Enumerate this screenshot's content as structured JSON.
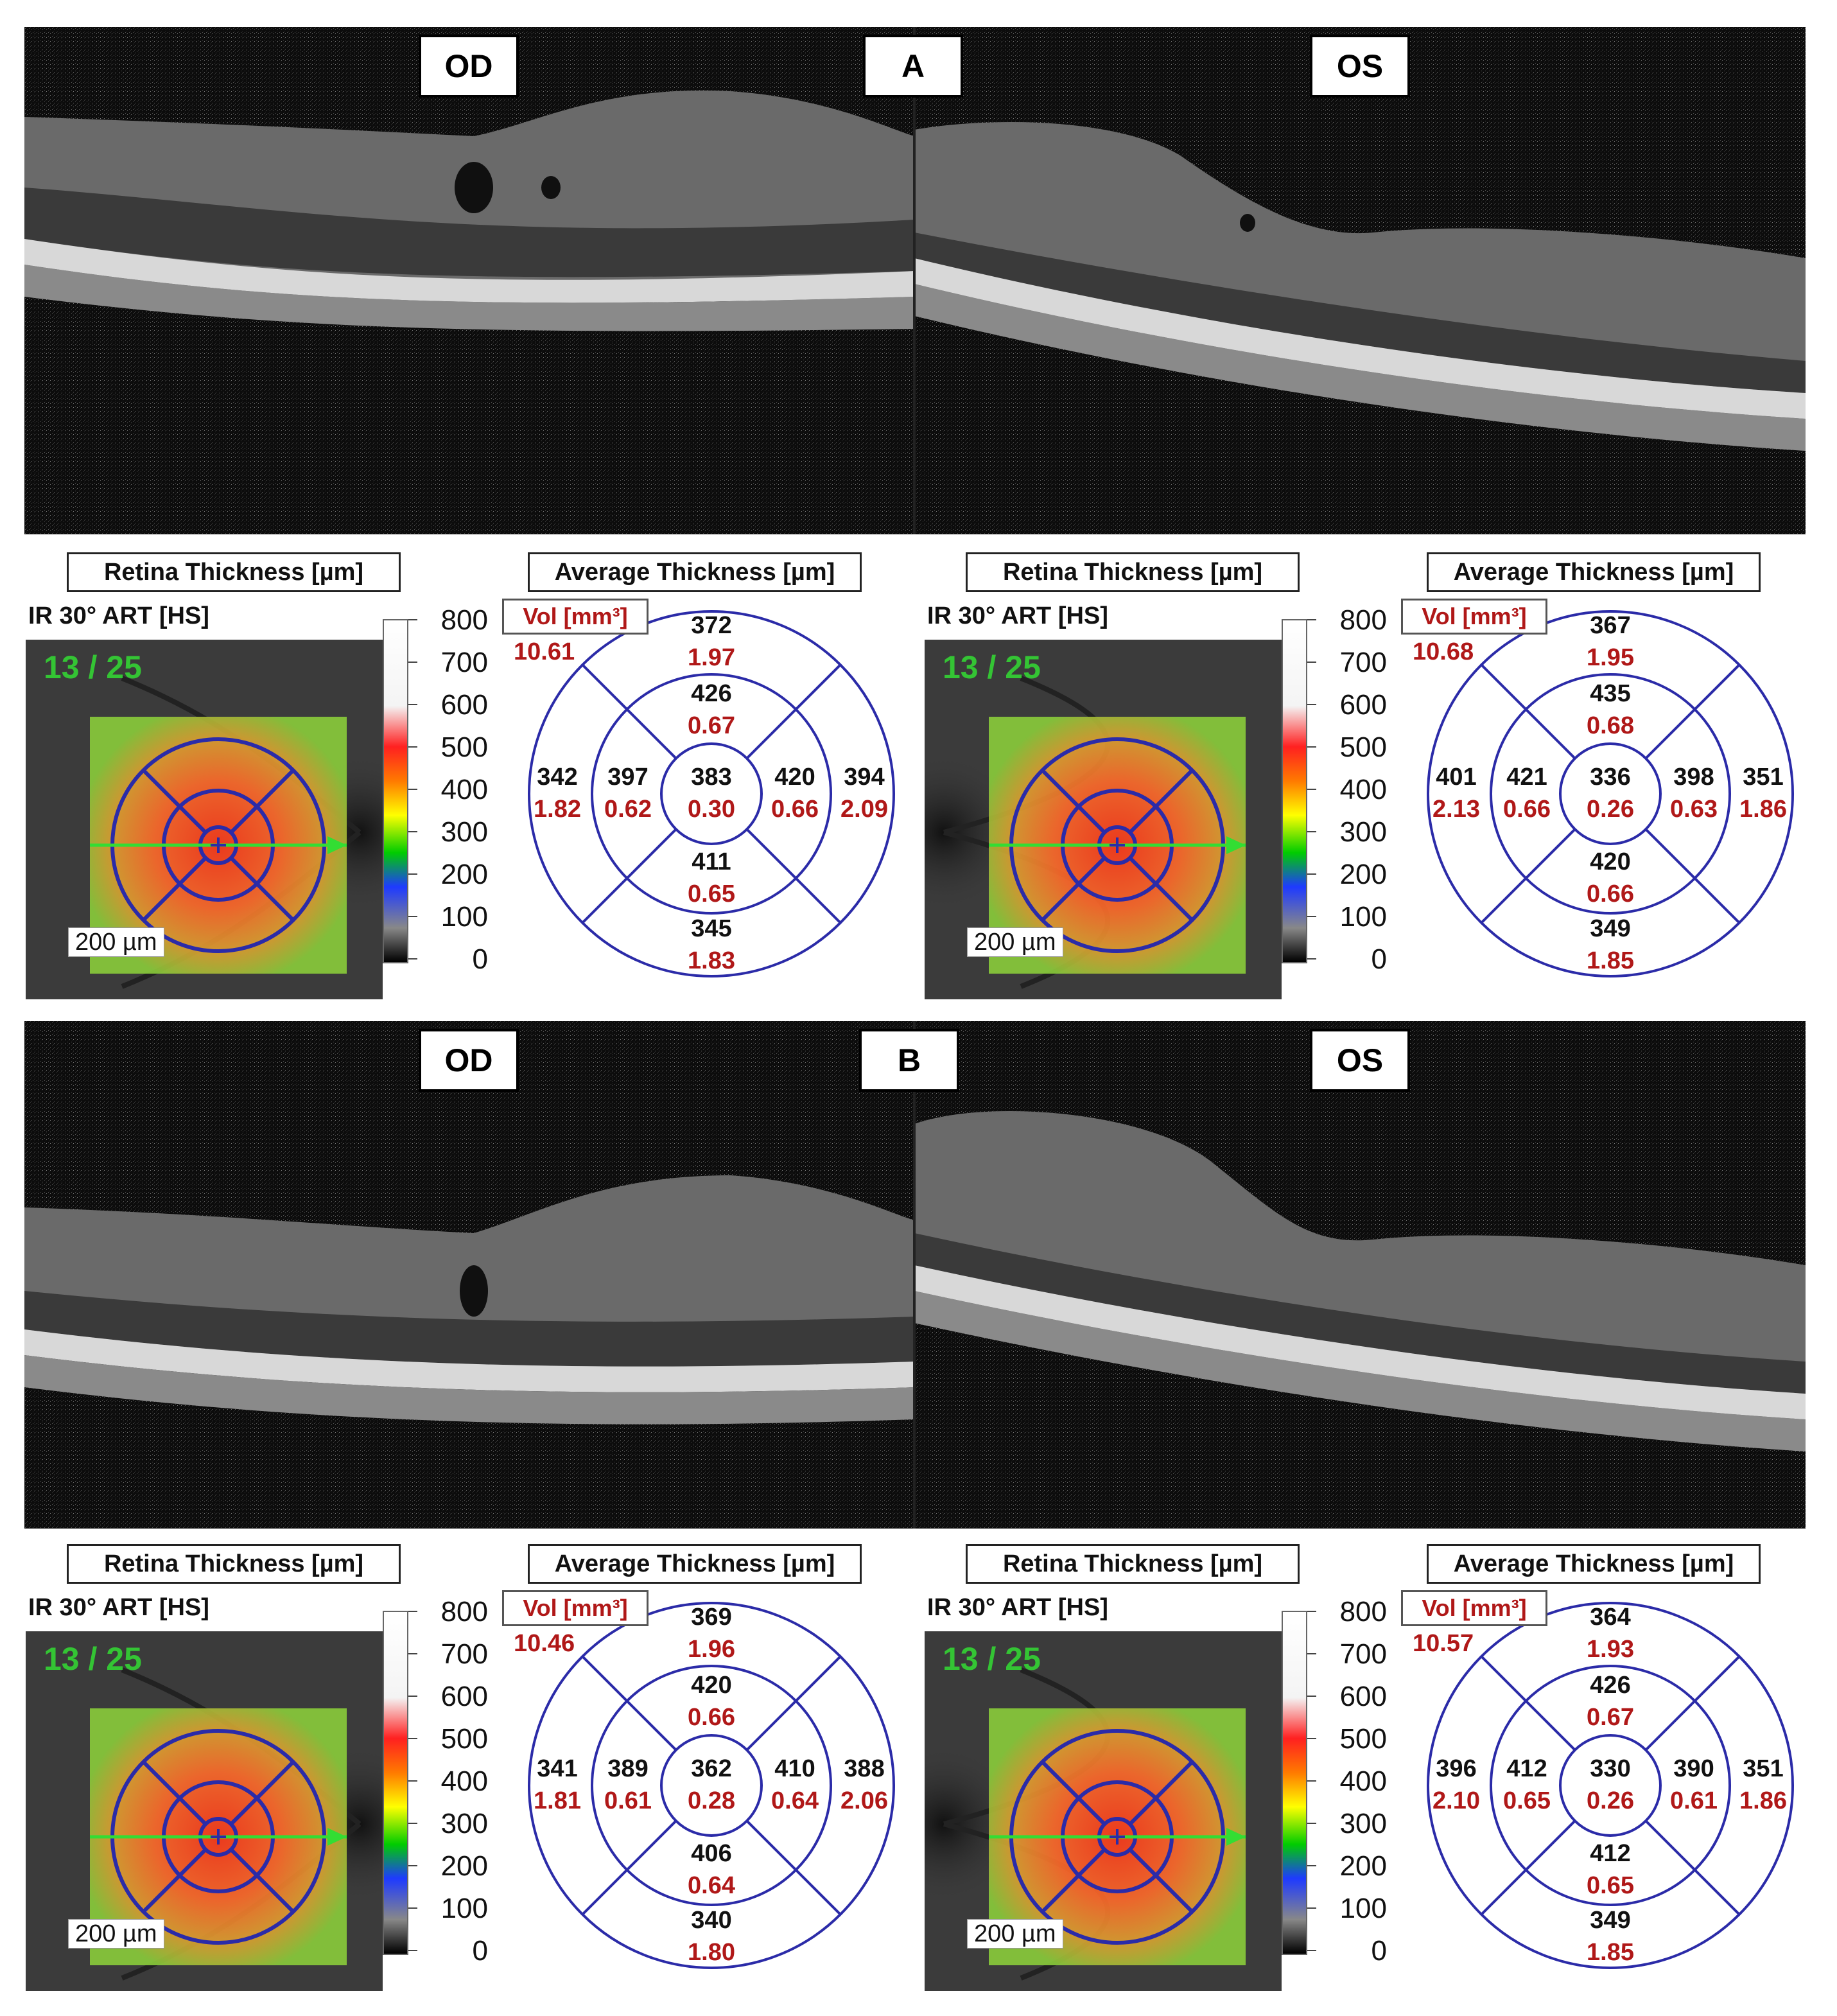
{
  "panels": [
    {
      "letter": "A",
      "eyes": [
        {
          "eye_label": "OD",
          "retina_header": "Retina Thickness [µm]",
          "avg_header": "Average Thickness [µm]",
          "ir_label": "IR 30° ART [HS]",
          "counter": "13 / 25",
          "scale_bar": "200 µm",
          "vol_label": "Vol [mm³]",
          "vol_total": "10.61",
          "ticks": [
            "800",
            "700",
            "600",
            "500",
            "400",
            "300",
            "200",
            "100",
            "0"
          ],
          "values": {
            "top_outer": "372",
            "top_outer_vol": "1.97",
            "top_inner": "426",
            "top_inner_vol": "0.67",
            "center": "383",
            "center_vol": "0.30",
            "left_outer": "342",
            "left_outer_vol": "1.82",
            "left_inner": "397",
            "left_inner_vol": "0.62",
            "right_inner": "420",
            "right_inner_vol": "0.66",
            "right_outer": "394",
            "right_outer_vol": "2.09",
            "bottom_inner": "411",
            "bottom_inner_vol": "0.65",
            "bottom_outer": "345",
            "bottom_outer_vol": "1.83"
          }
        },
        {
          "eye_label": "OS",
          "retina_header": "Retina Thickness [µm]",
          "avg_header": "Average Thickness [µm]",
          "ir_label": "IR 30° ART [HS]",
          "counter": "13 / 25",
          "scale_bar": "200 µm",
          "vol_label": "Vol [mm³]",
          "vol_total": "10.68",
          "ticks": [
            "800",
            "700",
            "600",
            "500",
            "400",
            "300",
            "200",
            "100",
            "0"
          ],
          "values": {
            "top_outer": "367",
            "top_outer_vol": "1.95",
            "top_inner": "435",
            "top_inner_vol": "0.68",
            "center": "336",
            "center_vol": "0.26",
            "left_outer": "401",
            "left_outer_vol": "2.13",
            "left_inner": "421",
            "left_inner_vol": "0.66",
            "right_inner": "398",
            "right_inner_vol": "0.63",
            "right_outer": "351",
            "right_outer_vol": "1.86",
            "bottom_inner": "420",
            "bottom_inner_vol": "0.66",
            "bottom_outer": "349",
            "bottom_outer_vol": "1.85"
          }
        }
      ]
    },
    {
      "letter": "B",
      "eyes": [
        {
          "eye_label": "OD",
          "retina_header": "Retina Thickness [µm]",
          "avg_header": "Average Thickness [µm]",
          "ir_label": "IR 30° ART [HS]",
          "counter": "13 / 25",
          "scale_bar": "200 µm",
          "vol_label": "Vol [mm³]",
          "vol_total": "10.46",
          "ticks": [
            "800",
            "700",
            "600",
            "500",
            "400",
            "300",
            "200",
            "100",
            "0"
          ],
          "values": {
            "top_outer": "369",
            "top_outer_vol": "1.96",
            "top_inner": "420",
            "top_inner_vol": "0.66",
            "center": "362",
            "center_vol": "0.28",
            "left_outer": "341",
            "left_outer_vol": "1.81",
            "left_inner": "389",
            "left_inner_vol": "0.61",
            "right_inner": "410",
            "right_inner_vol": "0.64",
            "right_outer": "388",
            "right_outer_vol": "2.06",
            "bottom_inner": "406",
            "bottom_inner_vol": "0.64",
            "bottom_outer": "340",
            "bottom_outer_vol": "1.80"
          }
        },
        {
          "eye_label": "OS",
          "retina_header": "Retina Thickness [µm]",
          "avg_header": "Average Thickness [µm]",
          "ir_label": "IR 30° ART [HS]",
          "counter": "13 / 25",
          "scale_bar": "200 µm",
          "vol_label": "Vol [mm³]",
          "vol_total": "10.57",
          "ticks": [
            "800",
            "700",
            "600",
            "500",
            "400",
            "300",
            "200",
            "100",
            "0"
          ],
          "values": {
            "top_outer": "364",
            "top_outer_vol": "1.93",
            "top_inner": "426",
            "top_inner_vol": "0.67",
            "center": "330",
            "center_vol": "0.26",
            "left_outer": "396",
            "left_outer_vol": "2.10",
            "left_inner": "412",
            "left_inner_vol": "0.65",
            "right_inner": "390",
            "right_inner_vol": "0.61",
            "right_outer": "351",
            "right_outer_vol": "1.86",
            "bottom_inner": "412",
            "bottom_inner_vol": "0.65",
            "bottom_outer": "349",
            "bottom_outer_vol": "1.85"
          }
        }
      ]
    }
  ],
  "colors": {
    "grid_blue": "#2b2ba8",
    "vol_red": "#b01818",
    "counter_green": "#33dd33",
    "bscan_bg": "#050505"
  }
}
